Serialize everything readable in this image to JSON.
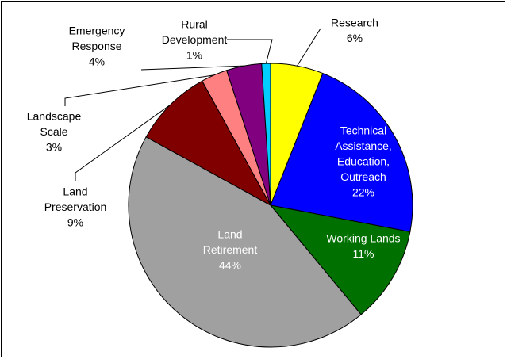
{
  "chart_data": {
    "type": "pie",
    "categories": [
      [
        "Research"
      ],
      [
        "Technical",
        "Assistance,",
        "Education,",
        "Outreach"
      ],
      [
        "Working Lands"
      ],
      [
        "Land",
        "Retirement"
      ],
      [
        "Land",
        "Preservation"
      ],
      [
        "Landscape",
        "Scale"
      ],
      [
        "Emergency",
        "Response"
      ],
      [
        "Rural",
        "Development"
      ]
    ],
    "values": [
      6,
      22,
      11,
      44,
      9,
      3,
      4,
      1
    ],
    "value_labels": [
      "6%",
      "22%",
      "11%",
      "44%",
      "9%",
      "3%",
      "4%",
      "1%"
    ],
    "colors": [
      "#ffff00",
      "#0000ff",
      "#007000",
      "#a0a0a0",
      "#800000",
      "#ff8080",
      "#800080",
      "#00ccff"
    ]
  }
}
